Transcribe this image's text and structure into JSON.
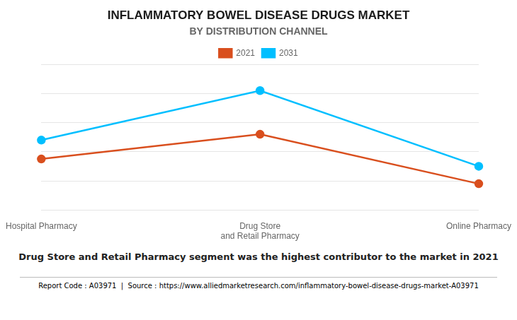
{
  "chart_data": {
    "type": "line",
    "title": "INFLAMMATORY BOWEL DISEASE DRUGS MARKET",
    "subtitle": "BY DISTRIBUTION CHANNEL",
    "annotation": "Drug Store and Retail Pharmacy segment was the highest contributor to the market in 2021",
    "footer": "Report Code : A03971  |  Source : https://www.alliedmarketresearch.com/inflammatory-bowel-disease-drugs-market-A03971",
    "categories": [
      "Hospital Pharmacy",
      "Drug Store\nand Retail Pharmacy",
      "Online Pharmacy"
    ],
    "series": [
      {
        "name": "2021",
        "color": "#d94f1e",
        "values": [
          35,
          52,
          18
        ]
      },
      {
        "name": "2031",
        "color": "#00bfff",
        "values": [
          48,
          82,
          30
        ]
      }
    ],
    "ylim": [
      0,
      100
    ],
    "yticks": [
      0,
      20,
      40,
      60,
      80,
      100
    ],
    "grid": true,
    "legend": "top",
    "tick_labels": "x",
    "marker": "circle",
    "line_style": "solid"
  }
}
